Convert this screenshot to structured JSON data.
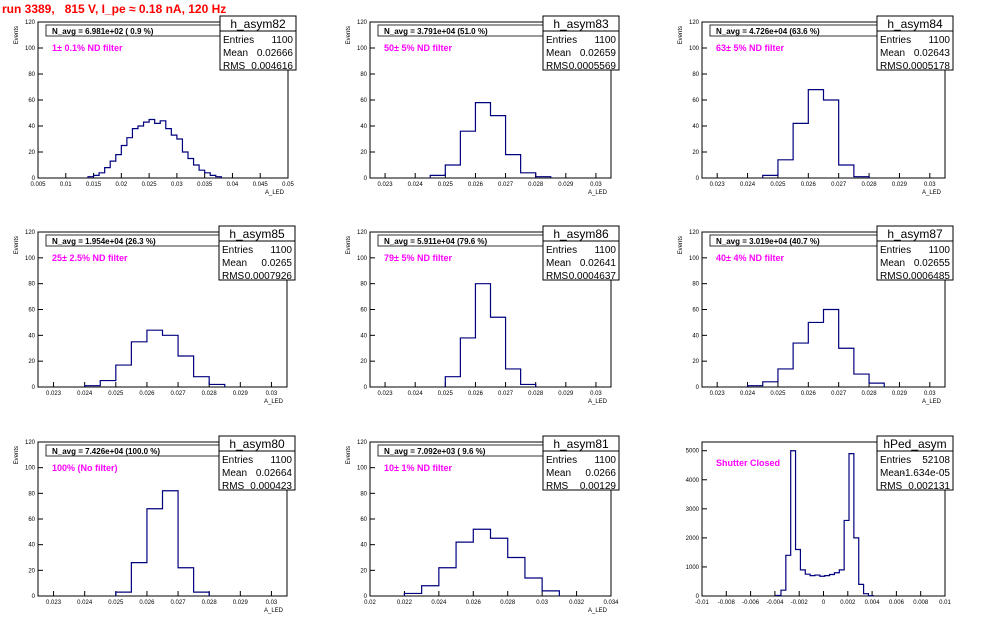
{
  "title": "run 3389,   815 V, I_pe ≈ 0.18 nA, 120 Hz",
  "colors": {
    "title": "#ff0000",
    "histogram": "#00007f",
    "filter_label": "#ff00ff"
  },
  "chart_data": [
    {
      "type": "histogram",
      "name": "h_asym82",
      "navg": "N_avg = 6.981e+02 ( 0.9 %)",
      "filter": "1± 0.1% ND filter",
      "stats": {
        "entries": "1100",
        "mean": "0.02666",
        "rms": "0.004616"
      },
      "xlabel": "A_LED",
      "ylabel": "Events",
      "xlim": [
        0.005,
        0.05
      ],
      "ylim": [
        0,
        120
      ],
      "xticks": [
        "0.005",
        "0.01",
        "0.015",
        "0.02",
        "0.025",
        "0.03",
        "0.035",
        "0.04",
        "0.045",
        "0.05"
      ],
      "yticks": [
        "0",
        "20",
        "40",
        "60",
        "80",
        "100",
        "120"
      ],
      "x": [
        0.0145,
        0.0155,
        0.0165,
        0.0175,
        0.0185,
        0.0195,
        0.0205,
        0.0215,
        0.0225,
        0.0235,
        0.0245,
        0.0255,
        0.0265,
        0.0275,
        0.0285,
        0.0295,
        0.0305,
        0.0315,
        0.0325,
        0.0335,
        0.0345,
        0.0355,
        0.0365,
        0.0375
      ],
      "y": [
        1,
        2,
        4,
        8,
        13,
        18,
        25,
        31,
        38,
        40,
        43,
        45,
        42,
        44,
        38,
        33,
        30,
        20,
        15,
        10,
        6,
        4,
        2,
        1
      ]
    },
    {
      "type": "histogram",
      "name": "h_asym83",
      "navg": "N_avg = 3.791e+04 (51.0 %)",
      "filter": "50± 5% ND filter",
      "stats": {
        "entries": "1100",
        "mean": "0.02659",
        "rms": "0.0005569"
      },
      "xlabel": "A_LED",
      "ylabel": "Events",
      "xlim": [
        0.0225,
        0.0305
      ],
      "ylim": [
        0,
        120
      ],
      "xticks": [
        "0.023",
        "0.024",
        "0.025",
        "0.026",
        "0.027",
        "0.028",
        "0.029",
        "0.03"
      ],
      "yticks": [
        "0",
        "20",
        "40",
        "60",
        "80",
        "100",
        "120"
      ],
      "x": [
        0.02475,
        0.02525,
        0.02575,
        0.02625,
        0.02675,
        0.02725,
        0.02775,
        0.02825
      ],
      "y": [
        2,
        10,
        36,
        58,
        48,
        18,
        4,
        1
      ]
    },
    {
      "type": "histogram",
      "name": "h_asym84",
      "navg": "N_avg = 4.726e+04 (63.6 %)",
      "filter": "63± 5% ND filter",
      "stats": {
        "entries": "1100",
        "mean": "0.02643",
        "rms": "0.0005178"
      },
      "xlabel": "A_LED",
      "ylabel": "Events",
      "xlim": [
        0.0225,
        0.0305
      ],
      "ylim": [
        0,
        120
      ],
      "xticks": [
        "0.023",
        "0.024",
        "0.025",
        "0.026",
        "0.027",
        "0.028",
        "0.029",
        "0.03"
      ],
      "yticks": [
        "0",
        "20",
        "40",
        "60",
        "80",
        "100",
        "120"
      ],
      "x": [
        0.02475,
        0.02525,
        0.02575,
        0.02625,
        0.02675,
        0.02725,
        0.02775
      ],
      "y": [
        2,
        14,
        42,
        68,
        60,
        10,
        1
      ]
    },
    {
      "type": "histogram",
      "name": "h_asym85",
      "navg": "N_avg = 1.954e+04 (26.3 %)",
      "filter": "25± 2.5% ND filter",
      "stats": {
        "entries": "1100",
        "mean": "0.0265",
        "rms": "0.0007926"
      },
      "xlabel": "A_LED",
      "ylabel": "Events",
      "xlim": [
        0.0225,
        0.0305
      ],
      "ylim": [
        0,
        120
      ],
      "xticks": [
        "0.023",
        "0.024",
        "0.025",
        "0.026",
        "0.027",
        "0.028",
        "0.029",
        "0.03"
      ],
      "yticks": [
        "0",
        "20",
        "40",
        "60",
        "80",
        "100",
        "120"
      ],
      "x": [
        0.02425,
        0.02475,
        0.02525,
        0.02575,
        0.02625,
        0.02675,
        0.02725,
        0.02775,
        0.02825
      ],
      "y": [
        1,
        5,
        17,
        35,
        44,
        40,
        24,
        8,
        2
      ]
    },
    {
      "type": "histogram",
      "name": "h_asym86",
      "navg": "N_avg = 5.911e+04 (79.6 %)",
      "filter": "79± 5% ND filter",
      "stats": {
        "entries": "1100",
        "mean": "0.02641",
        "rms": "0.0004637"
      },
      "xlabel": "A_LED",
      "ylabel": "Events",
      "xlim": [
        0.0225,
        0.0305
      ],
      "ylim": [
        0,
        120
      ],
      "xticks": [
        "0.023",
        "0.024",
        "0.025",
        "0.026",
        "0.027",
        "0.028",
        "0.029",
        "0.03"
      ],
      "yticks": [
        "0",
        "20",
        "40",
        "60",
        "80",
        "100",
        "120"
      ],
      "x": [
        0.02525,
        0.02575,
        0.02625,
        0.02675,
        0.02725,
        0.02775
      ],
      "y": [
        8,
        38,
        80,
        54,
        14,
        2
      ]
    },
    {
      "type": "histogram",
      "name": "h_asym87",
      "navg": "N_avg = 3.019e+04 (40.7 %)",
      "filter": "40± 4% ND filter",
      "stats": {
        "entries": "1100",
        "mean": "0.02655",
        "rms": "0.0006485"
      },
      "xlabel": "A_LED",
      "ylabel": "Events",
      "xlim": [
        0.0225,
        0.0305
      ],
      "ylim": [
        0,
        120
      ],
      "xticks": [
        "0.023",
        "0.024",
        "0.025",
        "0.026",
        "0.027",
        "0.028",
        "0.029",
        "0.03"
      ],
      "yticks": [
        "0",
        "20",
        "40",
        "60",
        "80",
        "100",
        "120"
      ],
      "x": [
        0.02425,
        0.02475,
        0.02525,
        0.02575,
        0.02625,
        0.02675,
        0.02725,
        0.02775,
        0.02825
      ],
      "y": [
        1,
        4,
        14,
        34,
        50,
        60,
        30,
        10,
        3
      ]
    },
    {
      "type": "histogram",
      "name": "h_asym80",
      "navg": "N_avg = 7.426e+04 (100.0 %)",
      "filter": "100% (No filter)",
      "stats": {
        "entries": "1100",
        "mean": "0.02664",
        "rms": "0.000423"
      },
      "xlabel": "A_LED",
      "ylabel": "Events",
      "xlim": [
        0.0225,
        0.0305
      ],
      "ylim": [
        0,
        120
      ],
      "xticks": [
        "0.023",
        "0.024",
        "0.025",
        "0.026",
        "0.027",
        "0.028",
        "0.029",
        "0.03"
      ],
      "yticks": [
        "0",
        "20",
        "40",
        "60",
        "80",
        "100",
        "120"
      ],
      "x": [
        0.02525,
        0.02575,
        0.02625,
        0.02675,
        0.02725,
        0.02775
      ],
      "y": [
        3,
        26,
        68,
        82,
        22,
        3
      ]
    },
    {
      "type": "histogram",
      "name": "h_asym81",
      "navg": "N_avg = 7.092e+03 ( 9.6 %)",
      "filter": "10± 1% ND filter",
      "stats": {
        "entries": "1100",
        "mean": "0.0266",
        "rms": "0.00129"
      },
      "xlabel": "A_LED",
      "ylabel": "Events",
      "xlim": [
        0.02,
        0.034
      ],
      "ylim": [
        0,
        120
      ],
      "xticks": [
        "0.02",
        "0.022",
        "0.024",
        "0.026",
        "0.028",
        "0.03",
        "0.032",
        "0.034"
      ],
      "yticks": [
        "0",
        "20",
        "40",
        "60",
        "80",
        "100",
        "120"
      ],
      "x": [
        0.0225,
        0.0235,
        0.0245,
        0.0255,
        0.0265,
        0.0275,
        0.0285,
        0.0295,
        0.0305
      ],
      "y": [
        2,
        8,
        22,
        42,
        52,
        45,
        30,
        14,
        4
      ]
    },
    {
      "type": "histogram",
      "name": "hPed_asym",
      "navg": "",
      "filter": "Shutter Closed",
      "stats": {
        "entries": "52108",
        "mean": "-1.634e-05",
        "rms": "0.002131"
      },
      "xlabel": "",
      "ylabel": "",
      "xlim": [
        -0.01,
        0.01
      ],
      "ylim": [
        0,
        5300
      ],
      "xticks": [
        "-0.01",
        "-0.008",
        "-0.006",
        "-0.004",
        "-0.002",
        "0",
        "0.002",
        "0.004",
        "0.006",
        "0.008",
        "0.01"
      ],
      "yticks": [
        "0",
        "1000",
        "2000",
        "3000",
        "4000",
        "5000"
      ],
      "x": [
        -0.0037,
        -0.0033,
        -0.0029,
        -0.0025,
        -0.0021,
        -0.0017,
        -0.0013,
        -0.0009,
        -0.0005,
        -0.0001,
        0.0003,
        0.0007,
        0.0011,
        0.0015,
        0.0019,
        0.0023,
        0.0027,
        0.0031,
        0.0035,
        0.0039
      ],
      "y": [
        20,
        200,
        1400,
        5000,
        1600,
        900,
        750,
        700,
        720,
        680,
        700,
        740,
        800,
        900,
        2600,
        4900,
        2000,
        400,
        80,
        10
      ]
    }
  ]
}
